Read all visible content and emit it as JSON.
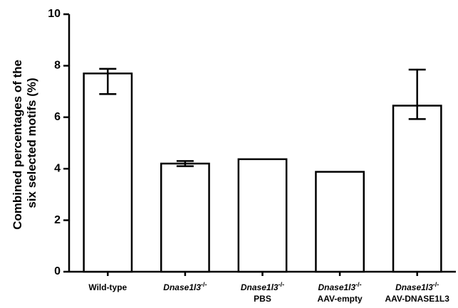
{
  "chart_data": {
    "type": "bar",
    "y_label_lines": [
      "Combined percentages of the",
      "six selected motifs (%)"
    ],
    "categories": [
      {
        "name": "Wild-type"
      },
      {
        "name": "Dnase1l3",
        "genotype": "-/-"
      },
      {
        "name": "Dnase1l3",
        "genotype": "-/-",
        "treatment": "PBS"
      },
      {
        "name": "Dnase1l3",
        "genotype": "-/-",
        "treatment": "AAV-empty"
      },
      {
        "name": "Dnase1l3",
        "genotype": "-/-",
        "treatment": "AAV-DNASE1L3"
      }
    ],
    "values": [
      7.7,
      4.2,
      4.37,
      3.88,
      6.45
    ],
    "error_bars": [
      [
        6.9,
        7.88
      ],
      [
        4.1,
        4.3
      ],
      null,
      null,
      [
        5.93,
        7.85
      ]
    ],
    "color": "#ffffff",
    "edge_color": "#000000",
    "ylim": [
      0,
      10
    ],
    "yticks": [
      0,
      2,
      4,
      6,
      8,
      10
    ],
    "grid": false
  }
}
